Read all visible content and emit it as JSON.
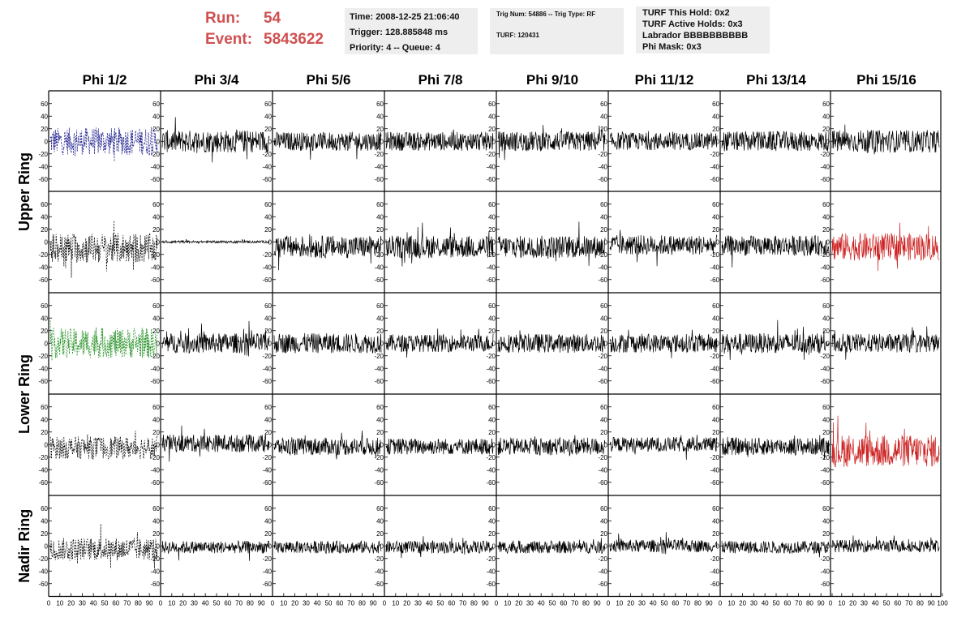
{
  "header": {
    "run_label": "Run:",
    "run_value": "54",
    "event_label": "Event:",
    "event_value": "5843622"
  },
  "info_time": {
    "time": "Time: 2008-12-25 21:06:40",
    "trigger": "Trigger: 128.885848 ms",
    "priority": "Priority: 4 -- Queue: 4"
  },
  "info_trig": {
    "trig": "Trig Num: 54886 -- Trig Type: RF",
    "turf": "TURF: 120431"
  },
  "info_turf": {
    "hold": "TURF This Hold: 0x2",
    "active": "TURF Active Holds: 0x3",
    "labrador": "Labrador BBBBBBBBBB",
    "phimask": "Phi Mask: 0x3"
  },
  "chart_data": {
    "type": "line",
    "columns": [
      "Phi 1/2",
      "Phi 3/4",
      "Phi 5/6",
      "Phi 7/8",
      "Phi 9/10",
      "Phi 11/12",
      "Phi 13/14",
      "Phi 15/16"
    ],
    "ring_labels": [
      "Upper Ring",
      "Lower Ring",
      "Nadir Ring"
    ],
    "rows": 5,
    "ylim": [
      -70,
      70
    ],
    "yticks": [
      -60,
      -40,
      -20,
      0,
      20,
      40,
      60
    ],
    "xlim": [
      0,
      100
    ],
    "xtick_labels": [
      "0",
      "10",
      "20",
      "30",
      "40",
      "50",
      "60",
      "70",
      "80",
      "90",
      "100"
    ],
    "colors": {
      "default": "#000000",
      "highlight": "#cc2222",
      "phi12_row1": "#1a1a8c",
      "phi12_row3": "#1a8c1a",
      "phi12_other": "#000000"
    },
    "panels": [
      [
        {
          "amp": 22,
          "style": "dashed",
          "color": "phi12_row1"
        },
        {
          "amp": 18,
          "style": "solid",
          "color": "default"
        },
        {
          "amp": 15,
          "style": "solid",
          "color": "default"
        },
        {
          "amp": 15,
          "style": "solid",
          "color": "default"
        },
        {
          "amp": 16,
          "style": "solid",
          "color": "default"
        },
        {
          "amp": 14,
          "style": "solid",
          "color": "default"
        },
        {
          "amp": 16,
          "style": "solid",
          "color": "default"
        },
        {
          "amp": 18,
          "style": "solid",
          "color": "default"
        }
      ],
      [
        {
          "amp": 24,
          "offset": -10,
          "style": "dashed",
          "color": "phi12_other"
        },
        {
          "amp": 2,
          "offset": 0,
          "style": "solid",
          "color": "default"
        },
        {
          "amp": 18,
          "offset": -8,
          "style": "solid",
          "color": "default"
        },
        {
          "amp": 18,
          "offset": -8,
          "style": "solid",
          "color": "default"
        },
        {
          "amp": 18,
          "offset": -8,
          "style": "solid",
          "color": "default"
        },
        {
          "amp": 16,
          "offset": -5,
          "style": "solid",
          "color": "default"
        },
        {
          "amp": 16,
          "offset": -6,
          "style": "solid",
          "color": "default"
        },
        {
          "amp": 22,
          "offset": -8,
          "style": "solid",
          "color": "highlight"
        }
      ],
      [
        {
          "amp": 24,
          "style": "dashed",
          "color": "phi12_row3"
        },
        {
          "amp": 16,
          "style": "solid",
          "color": "default"
        },
        {
          "amp": 16,
          "style": "solid",
          "color": "default"
        },
        {
          "amp": 14,
          "style": "solid",
          "color": "default"
        },
        {
          "amp": 15,
          "style": "solid",
          "color": "default"
        },
        {
          "amp": 15,
          "style": "solid",
          "color": "default"
        },
        {
          "amp": 16,
          "style": "solid",
          "color": "default"
        },
        {
          "amp": 15,
          "style": "solid",
          "color": "default"
        }
      ],
      [
        {
          "amp": 18,
          "offset": -5,
          "style": "dashed",
          "color": "phi12_other"
        },
        {
          "amp": 14,
          "offset": 2,
          "style": "solid",
          "color": "default"
        },
        {
          "amp": 14,
          "offset": -3,
          "style": "solid",
          "color": "default"
        },
        {
          "amp": 13,
          "offset": -3,
          "style": "solid",
          "color": "default"
        },
        {
          "amp": 14,
          "offset": -3,
          "style": "solid",
          "color": "default"
        },
        {
          "amp": 12,
          "offset": 0,
          "style": "solid",
          "color": "default"
        },
        {
          "amp": 14,
          "offset": -3,
          "style": "solid",
          "color": "default"
        },
        {
          "amp": 26,
          "offset": -10,
          "style": "solid",
          "color": "highlight"
        }
      ],
      [
        {
          "amp": 18,
          "offset": -5,
          "style": "dashed",
          "color": "phi12_other"
        },
        {
          "amp": 10,
          "offset": -2,
          "style": "solid",
          "color": "default"
        },
        {
          "amp": 10,
          "offset": -2,
          "style": "solid",
          "color": "default"
        },
        {
          "amp": 10,
          "offset": -2,
          "style": "solid",
          "color": "default"
        },
        {
          "amp": 10,
          "offset": -2,
          "style": "solid",
          "color": "default"
        },
        {
          "amp": 10,
          "offset": 0,
          "style": "solid",
          "color": "default"
        },
        {
          "amp": 10,
          "offset": -2,
          "style": "solid",
          "color": "default"
        },
        {
          "amp": 10,
          "offset": 0,
          "style": "solid",
          "color": "default"
        }
      ]
    ]
  }
}
